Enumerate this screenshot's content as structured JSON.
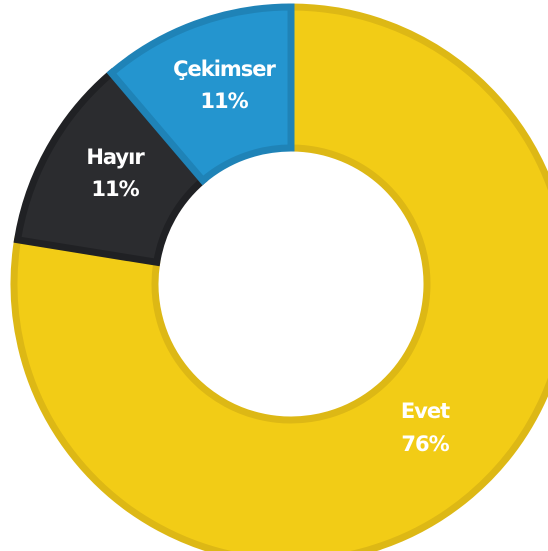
{
  "chart_data": {
    "type": "pie",
    "subtype": "donut",
    "title": "",
    "slices": [
      {
        "name": "Evet",
        "value": 76,
        "label": "76%",
        "color": "#F2CC16",
        "border_color": "#DDB815"
      },
      {
        "name": "Hayır",
        "value": 11,
        "label": "11%",
        "color": "#2B2C2F",
        "border_color": "#202124"
      },
      {
        "name": "Çekimser",
        "value": 11,
        "label": "11%",
        "color": "#2495CF",
        "border_color": "#1F83B7"
      }
    ],
    "legend": "none",
    "background": "#FFFFFF"
  }
}
